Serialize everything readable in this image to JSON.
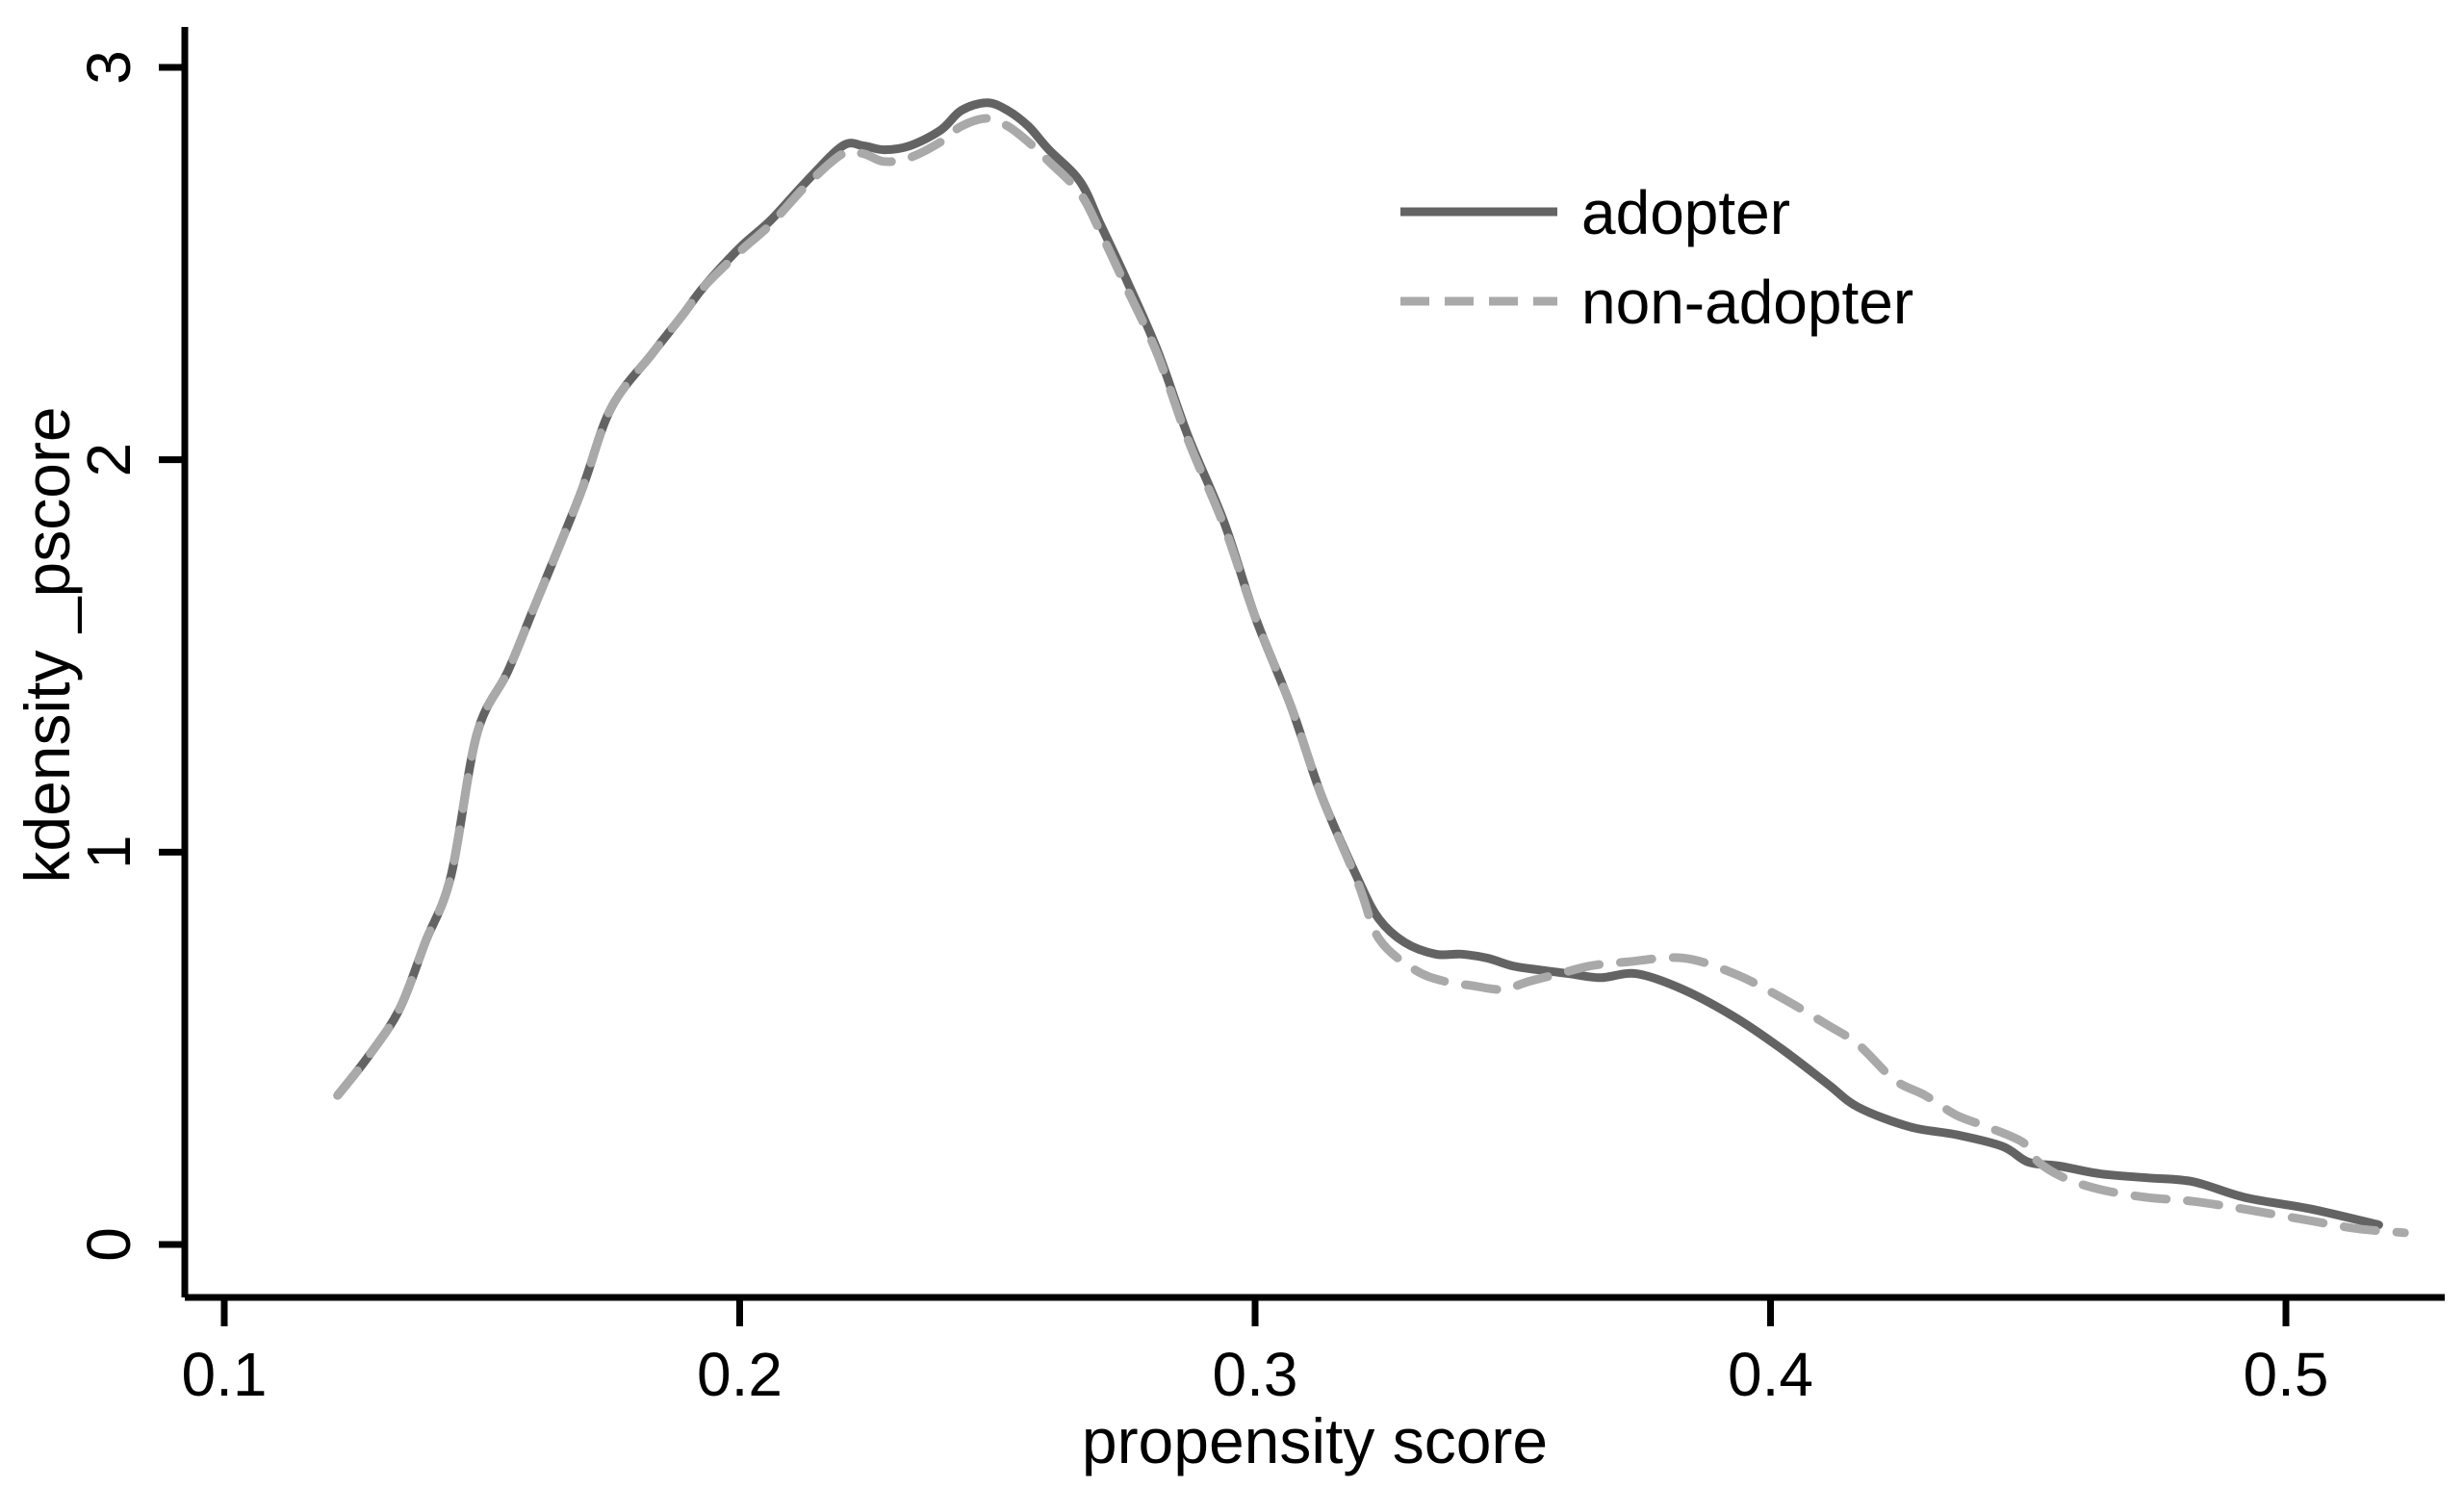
{
  "chart_data": {
    "type": "line",
    "title": "",
    "xlabel": "propensity score",
    "ylabel": "kdensity _pscore",
    "xlim": [
      0.09,
      0.535
    ],
    "ylim": [
      0,
      3.1
    ],
    "grid": false,
    "legend_position": "inside-top-right",
    "x_tick_labels": [
      "0.1",
      "0.2",
      "0.3",
      "0.4",
      "0.5"
    ],
    "y_tick_labels": [
      "0",
      "1",
      "2",
      "3"
    ],
    "axis_color": "#000000",
    "series": [
      {
        "name": "adopter",
        "style": "solid",
        "color": "#636363",
        "points": [
          [
            0.122,
            0.38
          ],
          [
            0.128,
            0.48
          ],
          [
            0.134,
            0.6
          ],
          [
            0.139,
            0.77
          ],
          [
            0.144,
            0.94
          ],
          [
            0.149,
            1.3
          ],
          [
            0.155,
            1.46
          ],
          [
            0.16,
            1.62
          ],
          [
            0.169,
            1.91
          ],
          [
            0.175,
            2.13
          ],
          [
            0.183,
            2.27
          ],
          [
            0.189,
            2.37
          ],
          [
            0.193,
            2.44
          ],
          [
            0.2,
            2.54
          ],
          [
            0.206,
            2.61
          ],
          [
            0.213,
            2.71
          ],
          [
            0.22,
            2.8
          ],
          [
            0.224,
            2.8
          ],
          [
            0.228,
            2.79
          ],
          [
            0.233,
            2.8
          ],
          [
            0.239,
            2.84
          ],
          [
            0.243,
            2.89
          ],
          [
            0.248,
            2.91
          ],
          [
            0.252,
            2.89
          ],
          [
            0.256,
            2.85
          ],
          [
            0.26,
            2.79
          ],
          [
            0.266,
            2.71
          ],
          [
            0.27,
            2.6
          ],
          [
            0.275,
            2.46
          ],
          [
            0.281,
            2.28
          ],
          [
            0.287,
            2.06
          ],
          [
            0.294,
            1.84
          ],
          [
            0.3,
            1.6
          ],
          [
            0.307,
            1.37
          ],
          [
            0.313,
            1.14
          ],
          [
            0.32,
            0.93
          ],
          [
            0.324,
            0.83
          ],
          [
            0.329,
            0.77
          ],
          [
            0.335,
            0.74
          ],
          [
            0.34,
            0.74
          ],
          [
            0.345,
            0.73
          ],
          [
            0.35,
            0.71
          ],
          [
            0.355,
            0.7
          ],
          [
            0.361,
            0.69
          ],
          [
            0.367,
            0.68
          ],
          [
            0.374,
            0.69
          ],
          [
            0.383,
            0.65
          ],
          [
            0.393,
            0.58
          ],
          [
            0.402,
            0.5
          ],
          [
            0.411,
            0.41
          ],
          [
            0.417,
            0.35
          ],
          [
            0.427,
            0.3
          ],
          [
            0.436,
            0.28
          ],
          [
            0.445,
            0.25
          ],
          [
            0.45,
            0.21
          ],
          [
            0.456,
            0.2
          ],
          [
            0.464,
            0.18
          ],
          [
            0.473,
            0.17
          ],
          [
            0.482,
            0.16
          ],
          [
            0.492,
            0.12
          ],
          [
            0.505,
            0.09
          ],
          [
            0.518,
            0.05
          ]
        ]
      },
      {
        "name": "non-adopter",
        "style": "dashed",
        "color": "#a9a9a9",
        "points": [
          [
            0.122,
            0.38
          ],
          [
            0.128,
            0.48
          ],
          [
            0.134,
            0.6
          ],
          [
            0.139,
            0.77
          ],
          [
            0.144,
            0.94
          ],
          [
            0.149,
            1.3
          ],
          [
            0.155,
            1.46
          ],
          [
            0.16,
            1.62
          ],
          [
            0.169,
            1.91
          ],
          [
            0.175,
            2.13
          ],
          [
            0.183,
            2.27
          ],
          [
            0.189,
            2.37
          ],
          [
            0.193,
            2.44
          ],
          [
            0.2,
            2.53
          ],
          [
            0.206,
            2.6
          ],
          [
            0.213,
            2.7
          ],
          [
            0.22,
            2.78
          ],
          [
            0.224,
            2.78
          ],
          [
            0.228,
            2.76
          ],
          [
            0.233,
            2.77
          ],
          [
            0.239,
            2.81
          ],
          [
            0.243,
            2.85
          ],
          [
            0.248,
            2.87
          ],
          [
            0.252,
            2.85
          ],
          [
            0.256,
            2.81
          ],
          [
            0.26,
            2.76
          ],
          [
            0.266,
            2.68
          ],
          [
            0.27,
            2.58
          ],
          [
            0.275,
            2.44
          ],
          [
            0.281,
            2.27
          ],
          [
            0.287,
            2.05
          ],
          [
            0.294,
            1.83
          ],
          [
            0.3,
            1.6
          ],
          [
            0.307,
            1.37
          ],
          [
            0.313,
            1.14
          ],
          [
            0.32,
            0.92
          ],
          [
            0.324,
            0.78
          ],
          [
            0.331,
            0.7
          ],
          [
            0.337,
            0.67
          ],
          [
            0.342,
            0.66
          ],
          [
            0.348,
            0.65
          ],
          [
            0.353,
            0.67
          ],
          [
            0.359,
            0.69
          ],
          [
            0.365,
            0.71
          ],
          [
            0.372,
            0.72
          ],
          [
            0.383,
            0.73
          ],
          [
            0.393,
            0.69
          ],
          [
            0.402,
            0.63
          ],
          [
            0.411,
            0.56
          ],
          [
            0.417,
            0.51
          ],
          [
            0.424,
            0.42
          ],
          [
            0.43,
            0.38
          ],
          [
            0.436,
            0.33
          ],
          [
            0.442,
            0.3
          ],
          [
            0.449,
            0.26
          ],
          [
            0.452,
            0.21
          ],
          [
            0.457,
            0.17
          ],
          [
            0.464,
            0.14
          ],
          [
            0.473,
            0.12
          ],
          [
            0.482,
            0.11
          ],
          [
            0.492,
            0.09
          ],
          [
            0.505,
            0.06
          ],
          [
            0.514,
            0.04
          ],
          [
            0.523,
            0.03
          ]
        ]
      }
    ]
  },
  "legend": {
    "items": [
      {
        "label": "adopter",
        "style": "solid",
        "color": "#636363"
      },
      {
        "label": "non-adopter",
        "style": "dashed",
        "color": "#a9a9a9"
      }
    ]
  }
}
